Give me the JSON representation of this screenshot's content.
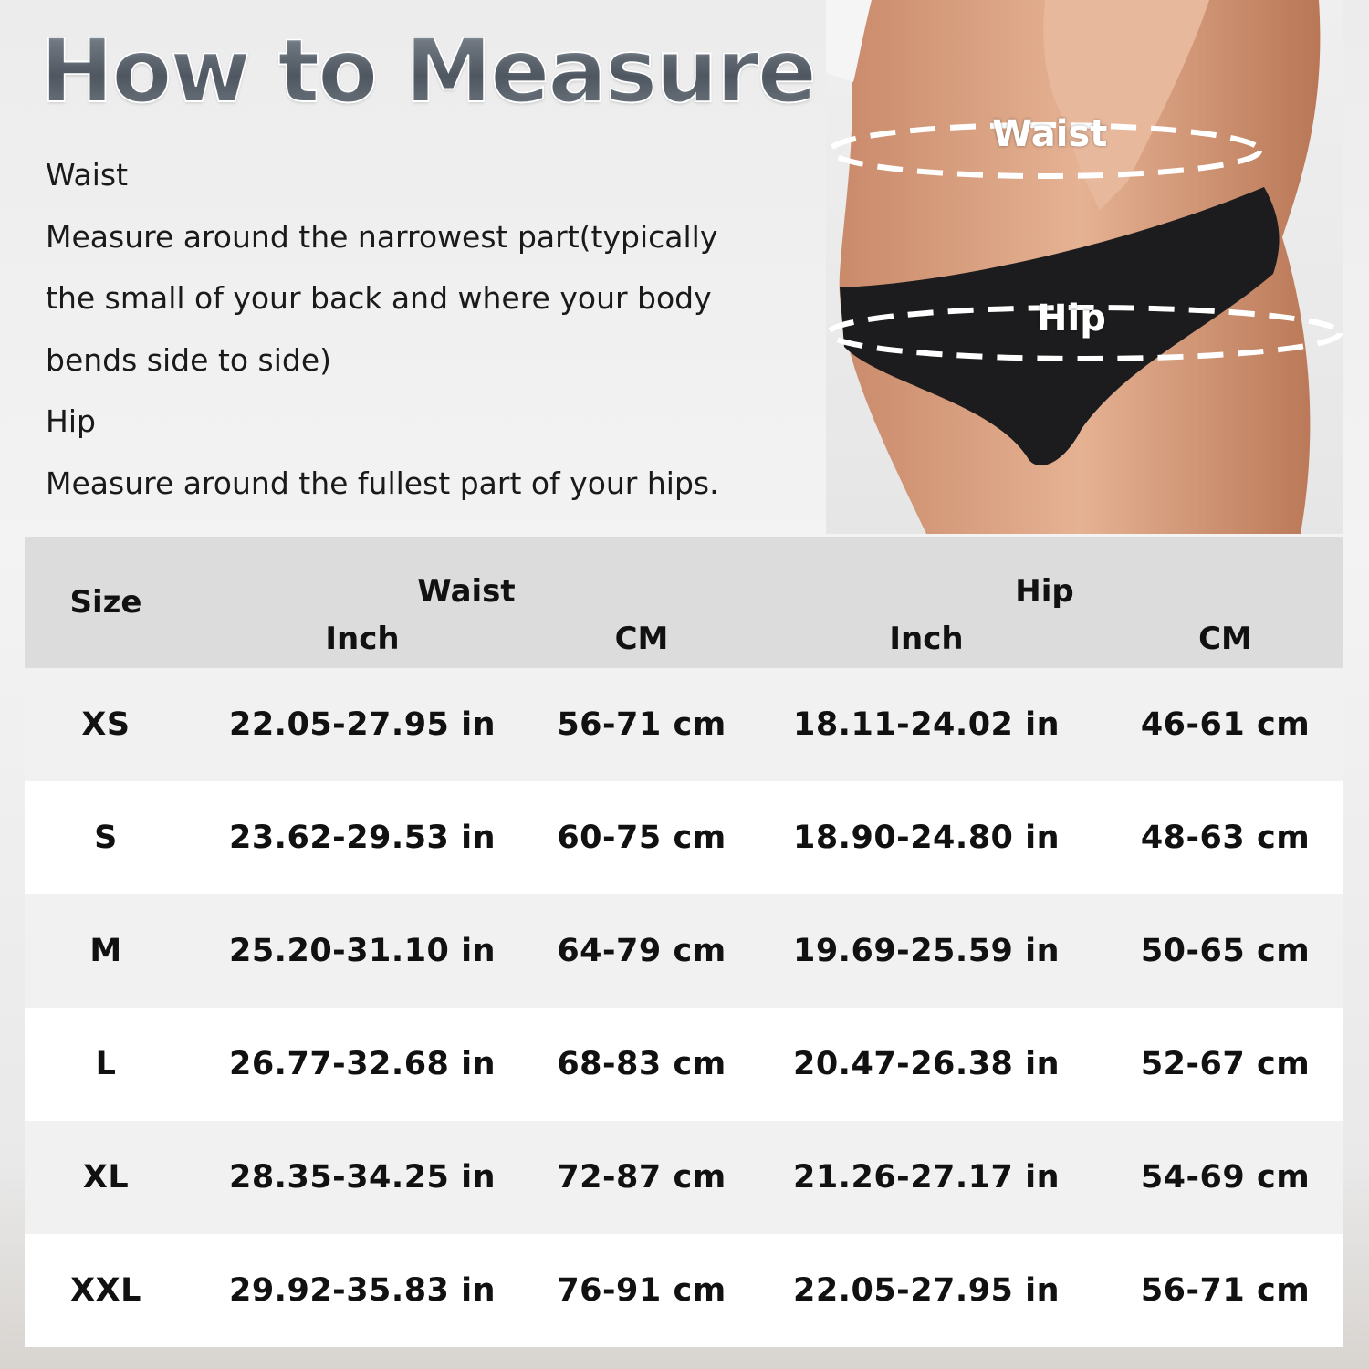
{
  "title": "How to Measure",
  "instructions": [
    "Waist",
    "Measure around the narrowest part(typically",
    "the small of your back and where your body",
    "bends side to side)",
    "Hip",
    "Measure around the fullest part of your hips."
  ],
  "photo": {
    "waist_label": "Waist",
    "hip_label": "Hip"
  },
  "table": {
    "size_header": "Size",
    "groups": [
      "Waist",
      "Hip"
    ],
    "subheaders": [
      "Inch",
      "CM",
      "Inch",
      "CM"
    ],
    "rows": [
      [
        "XS",
        "22.05-27.95 in",
        "56-71 cm",
        "18.11-24.02 in",
        "46-61 cm"
      ],
      [
        "S",
        "23.62-29.53 in",
        "60-75 cm",
        "18.90-24.80 in",
        "48-63 cm"
      ],
      [
        "M",
        "25.20-31.10 in",
        "64-79 cm",
        "19.69-25.59 in",
        "50-65 cm"
      ],
      [
        "L",
        "26.77-32.68 in",
        "68-83 cm",
        "20.47-26.38 in",
        "52-67 cm"
      ],
      [
        "XL",
        "28.35-34.25 in",
        "72-87 cm",
        "21.26-27.17 in",
        "54-69 cm"
      ],
      [
        "XXL",
        "29.92-35.83 in",
        "76-91 cm",
        "22.05-27.95 in",
        "56-71 cm"
      ]
    ]
  }
}
